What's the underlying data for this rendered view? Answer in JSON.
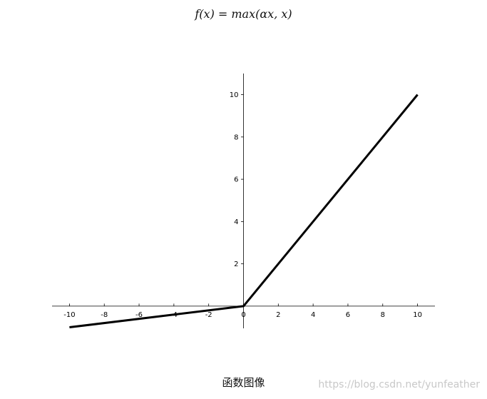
{
  "chart_data": {
    "type": "line",
    "title": "f(x) = max(αx, x)",
    "xlabel": "",
    "ylabel": "",
    "xlim": [
      -11,
      11
    ],
    "ylim": [
      -1.05,
      11
    ],
    "xticks": [
      -10,
      -8,
      -6,
      -4,
      -2,
      0,
      2,
      4,
      6,
      8,
      10
    ],
    "xtick_labels": [
      "-10",
      "-8",
      "-6",
      "-4",
      "-2",
      "0",
      "2",
      "4",
      "6",
      "8",
      "10"
    ],
    "yticks": [
      2,
      4,
      6,
      8,
      10
    ],
    "ytick_labels": [
      "2",
      "4",
      "6",
      "8",
      "10"
    ],
    "grid": false,
    "series": [
      {
        "x": [
          -10,
          0,
          10
        ],
        "y": [
          -1,
          0,
          10
        ],
        "color": "#000000"
      }
    ]
  },
  "caption": "函数图像",
  "watermark": "https://blog.csdn.net/yunfeather"
}
